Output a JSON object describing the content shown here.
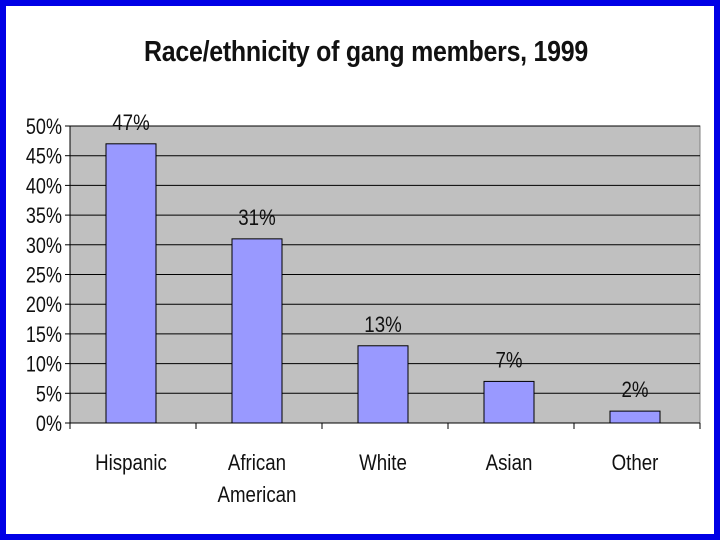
{
  "chart_data": {
    "type": "bar",
    "title": "Race/ethnicity of gang members, 1999",
    "categories": [
      [
        "Hispanic"
      ],
      [
        "African",
        "American"
      ],
      [
        "White"
      ],
      [
        "Asian"
      ],
      [
        "Other"
      ]
    ],
    "values": [
      47,
      31,
      13,
      7,
      2
    ],
    "data_labels": [
      "47%",
      "31%",
      "13%",
      "7%",
      "2%"
    ],
    "ylim": [
      0,
      50
    ],
    "y_ticks": [
      0,
      5,
      10,
      15,
      20,
      25,
      30,
      35,
      40,
      45,
      50
    ],
    "y_tick_labels": [
      "0%",
      "5%",
      "10%",
      "15%",
      "20%",
      "25%",
      "30%",
      "35%",
      "40%",
      "45%",
      "50%"
    ],
    "grid": true,
    "legend": "none",
    "colors": {
      "bar_fill": "#9999ff",
      "bar_stroke": "#000000",
      "plot_background": "#c0c0c0",
      "gridline": "#000000",
      "frame": "#0000e6"
    }
  }
}
